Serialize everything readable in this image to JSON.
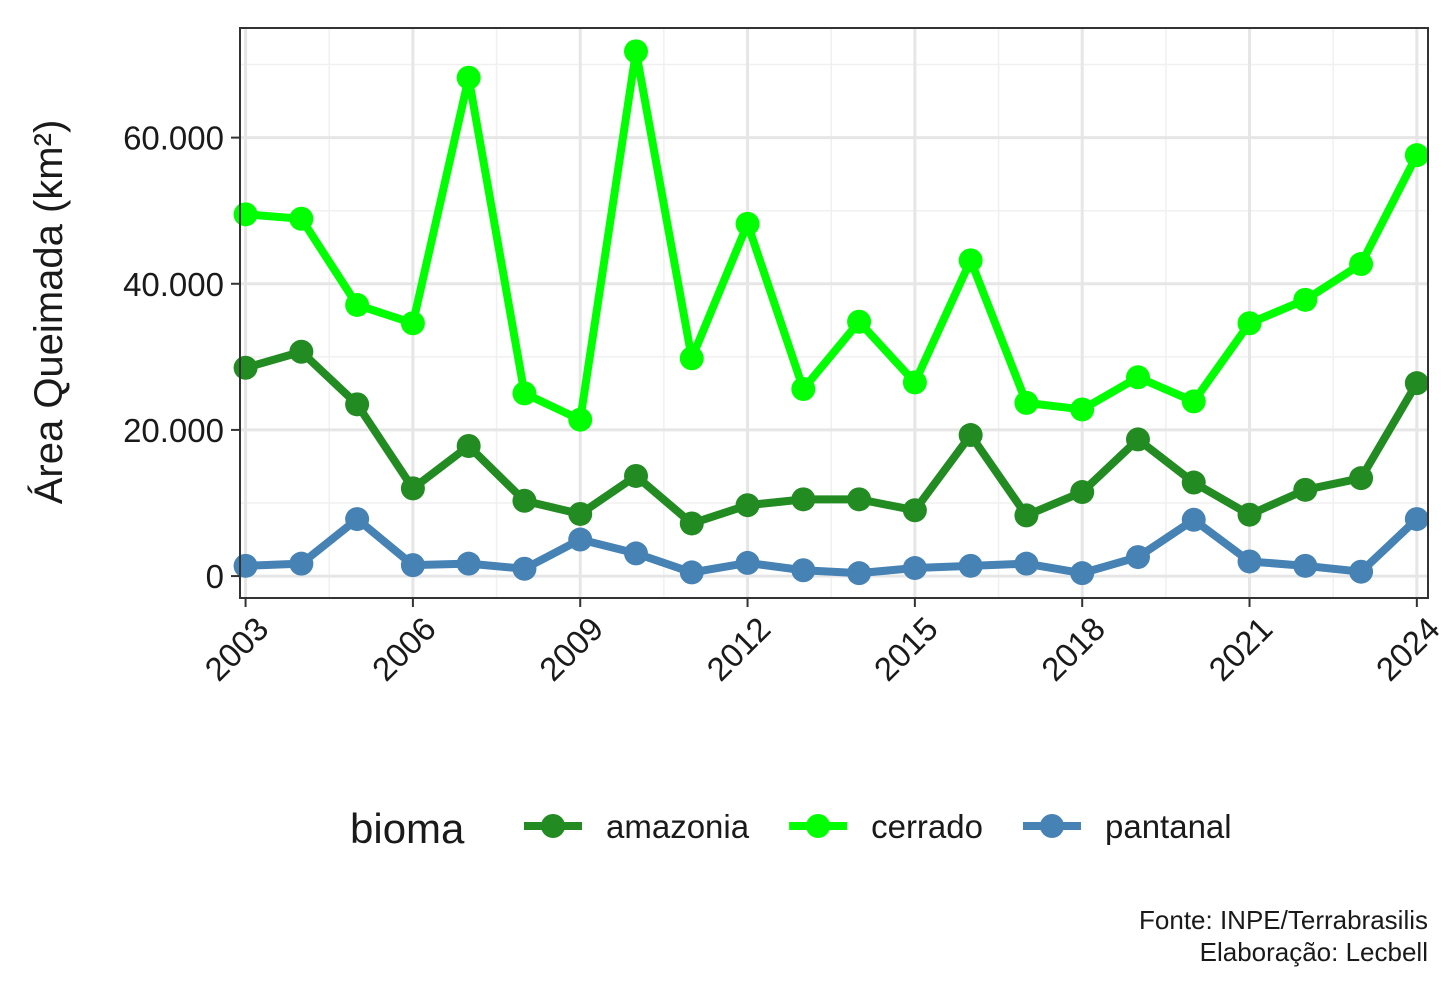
{
  "chart_data": {
    "type": "line",
    "ylabel": "Área Queimada (km²)",
    "xlabel": "",
    "x": [
      2003,
      2004,
      2005,
      2006,
      2007,
      2008,
      2009,
      2010,
      2011,
      2012,
      2013,
      2014,
      2015,
      2016,
      2017,
      2018,
      2019,
      2020,
      2021,
      2022,
      2023,
      2024
    ],
    "xticks": [
      2003,
      2006,
      2009,
      2012,
      2015,
      2018,
      2021,
      2024
    ],
    "xtick_labels": [
      "2003",
      "2006",
      "2009",
      "2012",
      "2015",
      "2018",
      "2021",
      "2024"
    ],
    "yticks": [
      0,
      20000,
      40000,
      60000
    ],
    "ytick_labels": [
      "0",
      "20.000",
      "40.000",
      "60.000"
    ],
    "xlim": [
      2002.9,
      2024.2
    ],
    "ylim": [
      -3000,
      75000
    ],
    "grid": true,
    "legend_title": "bioma",
    "legend_position": "bottom",
    "series": [
      {
        "name": "amazonia",
        "color": "#228B22",
        "values": [
          28500,
          30700,
          23500,
          12000,
          17800,
          10300,
          8500,
          13700,
          7200,
          9700,
          10500,
          10500,
          9000,
          19300,
          8300,
          11500,
          18700,
          12800,
          8400,
          11800,
          13400,
          26400
        ]
      },
      {
        "name": "cerrado",
        "color": "#00FF00",
        "values": [
          49500,
          48900,
          37100,
          34600,
          68200,
          25000,
          21400,
          71800,
          29800,
          48200,
          25600,
          34800,
          26500,
          43200,
          23700,
          22800,
          27200,
          23900,
          34600,
          37800,
          42700,
          57600
        ]
      },
      {
        "name": "pantanal",
        "color": "#4682B4",
        "values": [
          1400,
          1700,
          7800,
          1500,
          1700,
          1000,
          5000,
          3100,
          500,
          1800,
          800,
          400,
          1100,
          1400,
          1700,
          400,
          2600,
          7700,
          2000,
          1400,
          600,
          7800
        ]
      }
    ]
  },
  "caption": {
    "source": "Fonte: INPE/Terrabrasilis",
    "author": "Elaboração: Lecbell"
  }
}
